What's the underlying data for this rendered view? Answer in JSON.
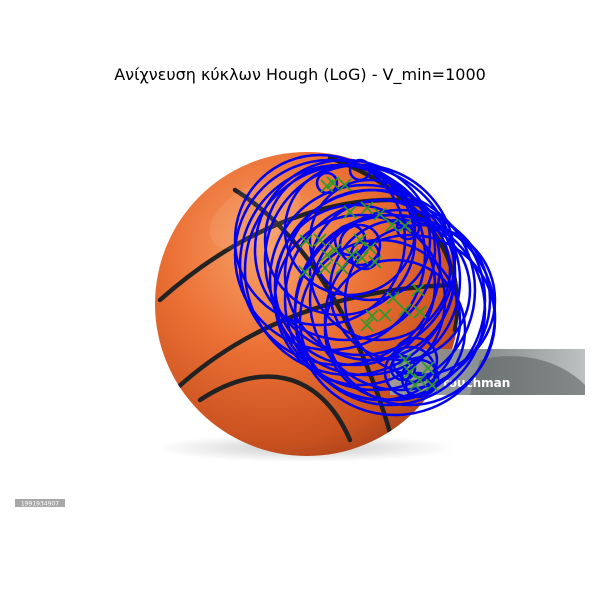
{
  "figure": {
    "title": "Ανίχνευση κύκλων Hough (LoG) - V_min=1000"
  },
  "image": {
    "subject": "basketball",
    "watermark_text": "touchman",
    "stock_id": "1991934907"
  },
  "overlay": {
    "circle_color": "#0000ee",
    "marker_color": "#2a9a2a",
    "marker_symbol": "x"
  },
  "colors": {
    "ball_light": "#f59a5c",
    "ball_mid": "#e8692c",
    "ball_dark": "#b8471b",
    "seam": "#222222"
  }
}
